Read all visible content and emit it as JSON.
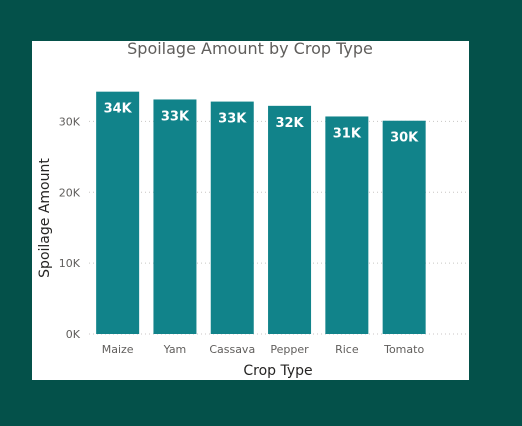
{
  "colors": {
    "background": "#04514a",
    "card": "#ffffff",
    "bar": "#11838a",
    "label": "#ffffff"
  },
  "chart_data": {
    "type": "bar",
    "title": "Spoilage Amount by Crop Type",
    "xlabel": "Crop Type",
    "ylabel": "Spoilage Amount",
    "categories": [
      "Maize",
      "Yam",
      "Cassava",
      "Pepper",
      "Rice",
      "Tomato"
    ],
    "values": [
      34200,
      33100,
      32800,
      32200,
      30700,
      30100
    ],
    "data_labels": [
      "34K",
      "33K",
      "33K",
      "32K",
      "31K",
      "30K"
    ],
    "ylim": [
      0,
      35000
    ],
    "yticks": [
      0,
      10000,
      20000,
      30000
    ],
    "ytick_labels": [
      "0K",
      "10K",
      "20K",
      "30K"
    ],
    "grid": true,
    "legend": "none"
  }
}
